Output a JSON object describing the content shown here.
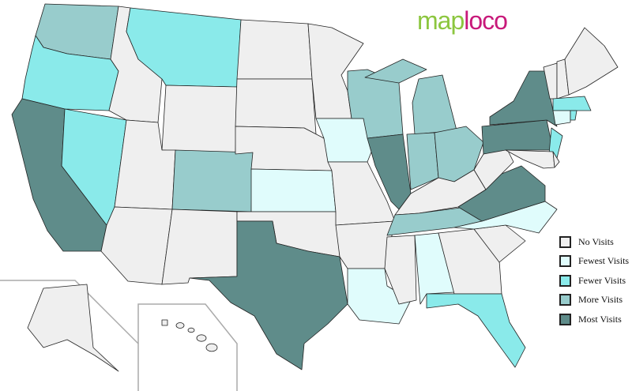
{
  "logo": {
    "part1": "map",
    "part2": "loco"
  },
  "legend": [
    {
      "key": "none",
      "label": "No Visits",
      "color": "#efefef"
    },
    {
      "key": "fewest",
      "label": "Fewest Visits",
      "color": "#e0fcfc"
    },
    {
      "key": "fewer",
      "label": "Fewer Visits",
      "color": "#8aeaea"
    },
    {
      "key": "more",
      "label": "More Visits",
      "color": "#98cccc"
    },
    {
      "key": "most",
      "label": "Most Visits",
      "color": "#5f8c8a"
    }
  ],
  "states": {
    "WA": "more",
    "OR": "fewer",
    "CA": "most",
    "NV": "fewer",
    "ID": "none",
    "MT": "fewer",
    "WY": "none",
    "UT": "none",
    "AZ": "none",
    "CO": "more",
    "NM": "none",
    "ND": "none",
    "SD": "none",
    "NE": "none",
    "KS": "fewest",
    "OK": "none",
    "TX": "most",
    "MN": "none",
    "IA": "fewest",
    "MO": "none",
    "AR": "none",
    "LA": "fewest",
    "WI": "more",
    "IL": "most",
    "MI": "more",
    "IN": "more",
    "OH": "more",
    "KY": "none",
    "TN": "more",
    "MS": "none",
    "AL": "fewest",
    "GA": "none",
    "FL": "fewer",
    "SC": "none",
    "NC": "fewest",
    "VA": "most",
    "WV": "none",
    "PA": "most",
    "NY": "most",
    "NJ": "fewer",
    "MD": "none",
    "DE": "none",
    "VT": "none",
    "NH": "none",
    "ME": "none",
    "MA": "fewer",
    "CT": "fewest",
    "RI": "fewer",
    "AK": "none",
    "HI": "none"
  }
}
